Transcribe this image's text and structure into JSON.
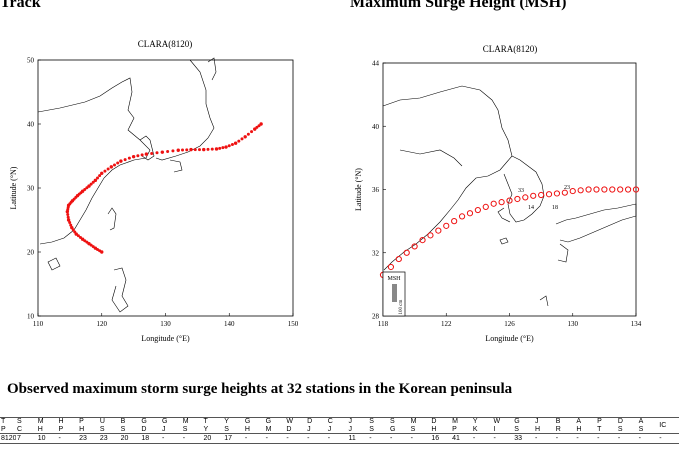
{
  "sections": {
    "track_title": "Track",
    "msh_title": "Maximum Surge Height (MSH)",
    "table_title": "Observed maximum storm surge heights at 32 stations in the Korean peninsula"
  },
  "colors": {
    "track": "#ee1111",
    "land": "#000000",
    "scale_bar": "#888888"
  },
  "chart_data": [
    {
      "type": "line",
      "title": "CLARA(8120)",
      "xlabel": "Longitude (°E)",
      "ylabel": "Latitude (°N)",
      "xlim": [
        110,
        150
      ],
      "ylim": [
        10,
        50
      ],
      "xticks": [
        "110",
        "120",
        "130",
        "140",
        "150"
      ],
      "yticks": [
        "10",
        "20",
        "30",
        "40",
        "50"
      ],
      "series": [
        {
          "x": [
            120.0,
            119.0,
            118.0,
            117.0,
            116.0,
            115.3,
            114.8,
            114.6,
            114.8,
            115.4,
            116.2,
            117.0,
            118.0,
            119.0,
            120.0,
            121.5,
            123.0,
            125.0,
            127.0,
            129.5,
            132.0,
            134.0,
            136.0,
            138.0,
            139.5,
            141.0,
            142.5,
            144.0,
            145.0
          ],
          "y": [
            20.0,
            20.6,
            21.3,
            22.0,
            22.8,
            23.8,
            25.0,
            26.3,
            27.3,
            28.0,
            28.8,
            29.5,
            30.3,
            31.2,
            32.3,
            33.3,
            34.2,
            34.9,
            35.3,
            35.6,
            35.9,
            36.0,
            36.0,
            36.1,
            36.4,
            37.0,
            38.0,
            39.2,
            40.0
          ]
        }
      ],
      "grid": false
    },
    {
      "type": "scatter",
      "title": "CLARA(8120)",
      "xlabel": "Longitude (°E)",
      "ylabel": "Latitude (°N)",
      "xlim": [
        118,
        134
      ],
      "ylim": [
        28,
        44
      ],
      "xticks": [
        "118",
        "122",
        "126",
        "130",
        "134"
      ],
      "yticks": [
        "28",
        "32",
        "36",
        "40",
        "44"
      ],
      "series": [
        {
          "x": [
            118.0,
            118.5,
            119.0,
            119.5,
            120.0,
            120.5,
            121.0,
            121.5,
            122.0,
            122.5,
            123.0,
            123.5,
            124.0,
            124.5,
            125.0,
            125.5,
            126.0,
            126.5,
            127.0,
            127.5,
            128.0,
            128.5,
            129.0,
            129.5,
            130.0,
            130.5,
            131.0,
            131.5,
            132.0,
            132.5,
            133.0,
            133.5,
            134.0
          ],
          "y": [
            30.6,
            31.1,
            31.6,
            32.0,
            32.4,
            32.8,
            33.1,
            33.4,
            33.7,
            34.0,
            34.3,
            34.5,
            34.7,
            34.9,
            35.1,
            35.2,
            35.3,
            35.4,
            35.5,
            35.6,
            35.65,
            35.7,
            35.75,
            35.8,
            35.9,
            35.95,
            36.0,
            36.0,
            36.0,
            36.0,
            36.0,
            36.0,
            36.0
          ]
        }
      ],
      "labels": [
        "33",
        "23",
        "14",
        "18"
      ],
      "legend": {
        "title": "MSH",
        "scale": "100 cm"
      }
    }
  ],
  "table": {
    "headers": [
      [
        "T",
        "P"
      ],
      [
        "S",
        "C"
      ],
      [
        "M",
        "H"
      ],
      [
        "H",
        "P"
      ],
      [
        "P",
        "H"
      ],
      [
        "U",
        "S"
      ],
      [
        "B",
        "S"
      ],
      [
        "G",
        "D"
      ],
      [
        "G",
        "J"
      ],
      [
        "M",
        "S"
      ],
      [
        "T",
        "Y"
      ],
      [
        "Y",
        "S"
      ],
      [
        "G",
        "H"
      ],
      [
        "G",
        "M"
      ],
      [
        "W",
        "D"
      ],
      [
        "D",
        "J"
      ],
      [
        "C",
        "J"
      ],
      [
        "J",
        "J"
      ],
      [
        "S",
        "S"
      ],
      [
        "S",
        "G"
      ],
      [
        "M",
        "S"
      ],
      [
        "D",
        "H"
      ],
      [
        "M",
        "P"
      ],
      [
        "Y",
        "K"
      ],
      [
        "W",
        "I"
      ],
      [
        "G",
        "S"
      ],
      [
        "J",
        "H"
      ],
      [
        "B",
        "R"
      ],
      [
        "A",
        "H"
      ],
      [
        "P",
        "T"
      ],
      [
        "D",
        "S"
      ],
      [
        "A",
        "S"
      ],
      [
        "IC",
        ""
      ]
    ],
    "values": [
      "8120",
      "7",
      "10",
      "-",
      "23",
      "23",
      "20",
      "18",
      "-",
      "-",
      "20",
      "17",
      "-",
      "-",
      "-",
      "-",
      "-",
      "11",
      "-",
      "-",
      "-",
      "16",
      "41",
      "-",
      "-",
      "33",
      "-",
      "-",
      "-",
      "-",
      "-",
      "-",
      "-"
    ]
  }
}
